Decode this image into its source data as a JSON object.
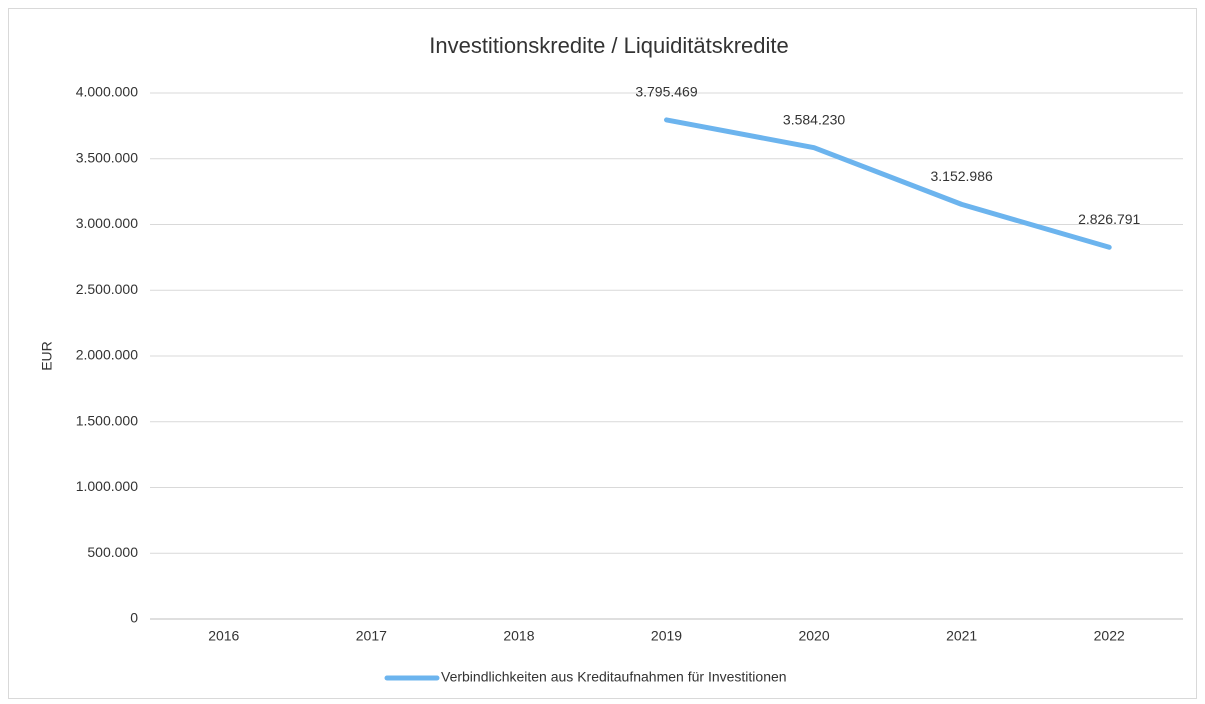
{
  "chart_data": {
    "type": "line",
    "title": "Investitionskredite / Liquiditätskredite",
    "y_label": "EUR",
    "categories": [
      "2016",
      "2017",
      "2018",
      "2019",
      "2020",
      "2021",
      "2022"
    ],
    "series": [
      {
        "name": "Verbindlichkeiten aus Kreditaufnahmen für Investitionen",
        "color": "#6cb4ee",
        "values": [
          null,
          null,
          null,
          3795469,
          3584230,
          3152986,
          2826791
        ],
        "value_labels": [
          null,
          null,
          null,
          "3.795.469",
          "3.584.230",
          "3.152.986",
          "2.826.791"
        ]
      }
    ],
    "ylim": [
      0,
      4000000
    ],
    "yticks": [
      0,
      {
        "value": 500000,
        "label": "500.000"
      },
      {
        "value": 1000000,
        "label": "1.000.000"
      },
      {
        "value": 1500000,
        "label": "1.500.000"
      },
      {
        "value": 2000000,
        "label": "2.000.000"
      },
      {
        "value": 2500000,
        "label": "2.500.000"
      },
      {
        "value": 3000000,
        "label": "3.000.000"
      },
      {
        "value": 3500000,
        "label": "3.500.000"
      },
      {
        "value": 4000000,
        "label": "4.000.000"
      }
    ],
    "grid": true,
    "legend": "bottom"
  }
}
